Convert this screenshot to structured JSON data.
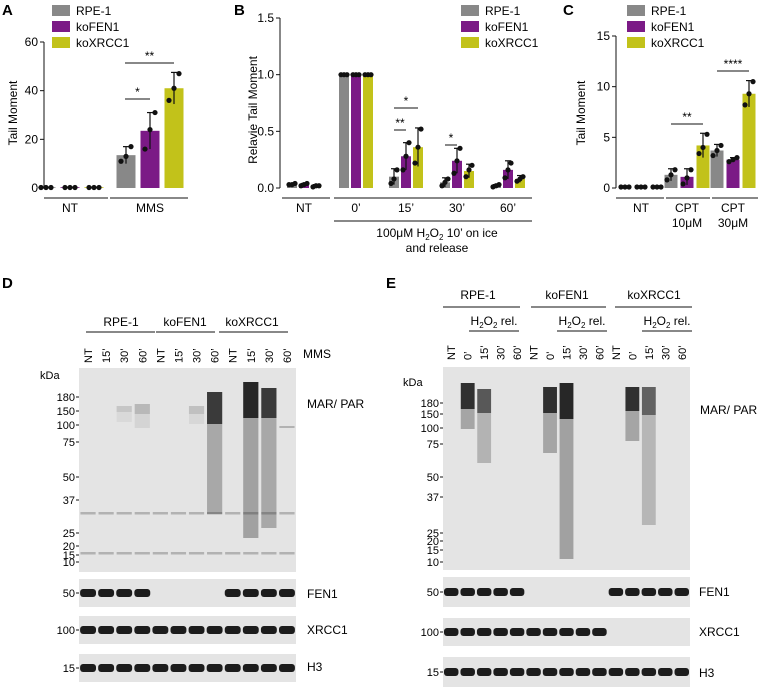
{
  "colors": {
    "rpe1": "#888888",
    "kofen1": "#7b1a86",
    "koxrcc1": "#c2c21a",
    "axis": "#111111",
    "blot_bg": "#e4e4e4",
    "band": "#1c1c1c"
  },
  "panels": {
    "A": {
      "letter": "A",
      "ylabel": "Tail Moment",
      "yticks": [
        "0",
        "20",
        "40",
        "60"
      ],
      "groups": [
        "NT",
        "MMS"
      ],
      "sig": [
        "*",
        "**"
      ]
    },
    "B": {
      "letter": "B",
      "ylabel": "Relavie Tail Moment",
      "yticks": [
        "0.0",
        "0.5",
        "1.0",
        "1.5"
      ],
      "groups": [
        "NT",
        "0’",
        "15’",
        "30’",
        "60’"
      ],
      "sig": [
        "*",
        "**",
        "*"
      ],
      "caption_line1_pre": "100μM H",
      "caption_sub": "2",
      "caption_mid": "O",
      "caption_sub2": "2",
      "caption_line1_post": " 10’ on ice",
      "caption_line2": "and release"
    },
    "C": {
      "letter": "C",
      "ylabel": "Tail Moment",
      "yticks": [
        "0",
        "5",
        "10",
        "15"
      ],
      "groups": [
        "NT",
        "CPT",
        "CPT"
      ],
      "doses": [
        "10μM",
        "30μM"
      ],
      "sig": [
        "**",
        "****"
      ]
    },
    "D": {
      "letter": "D",
      "cell_lines": [
        "RPE-1",
        "koFEN1",
        "koXRCC1"
      ],
      "lanes": [
        "NT",
        "15’",
        "30’",
        "60’",
        "NT",
        "15’",
        "30’",
        "60’",
        "NT",
        "15’",
        "30’",
        "60’"
      ],
      "treatment": "MMS",
      "kda_title": "kDa",
      "markers": [
        "180",
        "150",
        "100",
        "75",
        "50",
        "37",
        "25",
        "20",
        "15",
        "10"
      ],
      "blots": [
        "MAR/ PAR",
        "FEN1",
        "XRCC1",
        "H3"
      ],
      "small_markers": [
        "50",
        "100",
        "15"
      ]
    },
    "E": {
      "letter": "E",
      "cell_lines": [
        "RPE-1",
        "koFEN1",
        "koXRCC1"
      ],
      "sub_label_pre": "H",
      "sub_label_sub": "2",
      "sub_label_mid": "O",
      "sub_label_post": " rel.",
      "lanes": [
        "NT",
        "0’",
        "15’",
        "30’",
        "60’",
        "NT",
        "0’",
        "15’",
        "30’",
        "60’",
        "NT",
        "0’",
        "15’",
        "30’",
        "60’"
      ],
      "kda_title": "kDa",
      "markers": [
        "180",
        "150",
        "100",
        "75",
        "50",
        "37",
        "25",
        "20",
        "15",
        "10"
      ],
      "blots": [
        "MAR/ PAR",
        "FEN1",
        "XRCC1",
        "H3"
      ],
      "small_markers": [
        "50",
        "100",
        "15"
      ]
    }
  },
  "legend": [
    "RPE-1",
    "koFEN1",
    "koXRCC1"
  ],
  "chart_data": [
    {
      "type": "bar",
      "panel": "A",
      "categories": [
        "NT",
        "MMS"
      ],
      "ylabel": "Tail Moment",
      "ylim": [
        0,
        60
      ],
      "series": [
        {
          "name": "RPE-1",
          "values": [
            0.2,
            13.5
          ],
          "err": [
            0,
            3.5
          ],
          "points": [
            [
              0.2,
              0.2,
              0.2
            ],
            [
              11,
              13,
              17
            ]
          ]
        },
        {
          "name": "koFEN1",
          "values": [
            0.2,
            23.5
          ],
          "err": [
            0,
            7.5
          ],
          "points": [
            [
              0.2,
              0.2,
              0.2
            ],
            [
              16,
              24,
              31
            ]
          ]
        },
        {
          "name": "koXRCC1",
          "values": [
            0.2,
            41
          ],
          "err": [
            0,
            6.5
          ],
          "points": [
            [
              0.2,
              0.2,
              0.2
            ],
            [
              36,
              41,
              47
            ]
          ]
        }
      ]
    },
    {
      "type": "bar",
      "panel": "B",
      "categories": [
        "NT",
        "0’",
        "15’",
        "30’",
        "60’"
      ],
      "ylabel": "Relavie Tail Moment",
      "ylim": [
        0,
        1.5
      ],
      "series": [
        {
          "name": "RPE-1",
          "values": [
            0.03,
            1.0,
            0.1,
            0.05,
            0.02
          ],
          "err": [
            0.01,
            0,
            0.07,
            0.04,
            0.01
          ],
          "points": [
            [
              0.03,
              0.03,
              0.04
            ],
            [
              1,
              1,
              1
            ],
            [
              0.04,
              0.08,
              0.16
            ],
            [
              0.02,
              0.05,
              0.08
            ],
            [
              0.01,
              0.02,
              0.03
            ]
          ]
        },
        {
          "name": "koFEN1",
          "values": [
            0.03,
            1.0,
            0.28,
            0.24,
            0.16
          ],
          "err": [
            0.01,
            0,
            0.12,
            0.11,
            0.08
          ],
          "points": [
            [
              0.02,
              0.03,
              0.04
            ],
            [
              1,
              1,
              1
            ],
            [
              0.16,
              0.28,
              0.4
            ],
            [
              0.13,
              0.24,
              0.35
            ],
            [
              0.09,
              0.16,
              0.22
            ]
          ]
        },
        {
          "name": "koXRCC1",
          "values": [
            0.02,
            1.0,
            0.36,
            0.15,
            0.08
          ],
          "err": [
            0.01,
            0,
            0.17,
            0.06,
            0.03
          ],
          "points": [
            [
              0.01,
              0.02,
              0.02
            ],
            [
              1,
              1,
              1
            ],
            [
              0.22,
              0.36,
              0.52
            ],
            [
              0.1,
              0.16,
              0.2
            ],
            [
              0.06,
              0.08,
              0.1
            ]
          ]
        }
      ]
    },
    {
      "type": "bar",
      "panel": "C",
      "categories": [
        "NT",
        "CPT 10μM",
        "CPT 30μM"
      ],
      "ylabel": "Tail Moment",
      "ylim": [
        0,
        15
      ],
      "series": [
        {
          "name": "RPE-1",
          "values": [
            0.1,
            1.3,
            3.7
          ],
          "err": [
            0.05,
            0.6,
            0.6
          ],
          "points": [
            [
              0.1,
              0.1,
              0.1
            ],
            [
              0.8,
              1.3,
              1.8
            ],
            [
              3.2,
              3.7,
              4.2
            ]
          ]
        },
        {
          "name": "koFEN1",
          "values": [
            0.1,
            1.1,
            2.8
          ],
          "err": [
            0.05,
            0.8,
            0.2
          ],
          "points": [
            [
              0.1,
              0.1,
              0.1
            ],
            [
              0.4,
              1.0,
              1.8
            ],
            [
              2.6,
              2.8,
              3.0
            ]
          ]
        },
        {
          "name": "koXRCC1",
          "values": [
            0.1,
            4.2,
            9.3
          ],
          "err": [
            0.05,
            1.2,
            1.3
          ],
          "points": [
            [
              0.1,
              0.1,
              0.1
            ],
            [
              3.4,
              4.0,
              5.3
            ],
            [
              8.2,
              9.3,
              10.5
            ]
          ]
        }
      ]
    }
  ]
}
